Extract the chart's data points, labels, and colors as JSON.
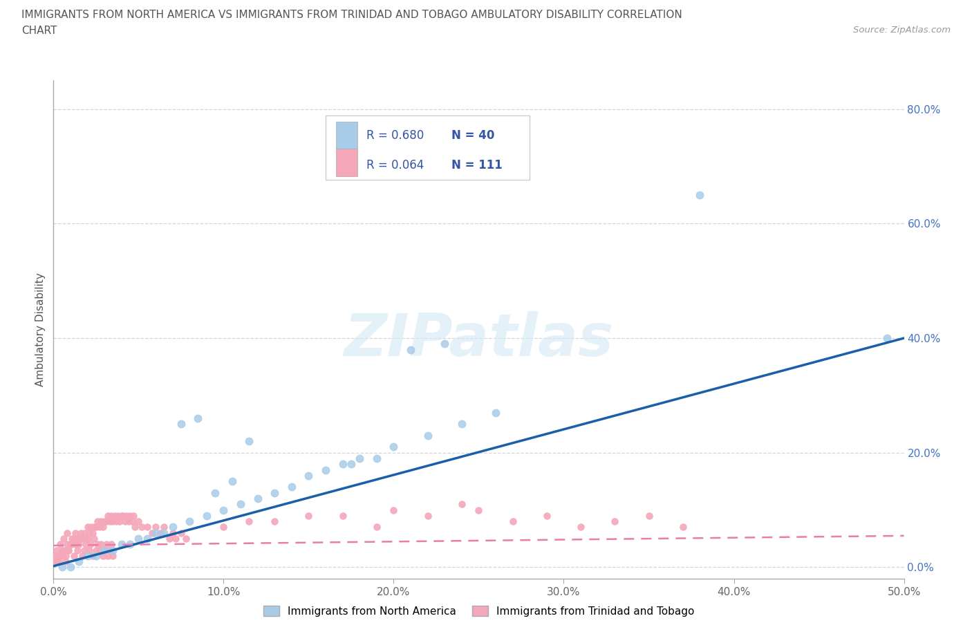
{
  "title_line1": "IMMIGRANTS FROM NORTH AMERICA VS IMMIGRANTS FROM TRINIDAD AND TOBAGO AMBULATORY DISABILITY CORRELATION",
  "title_line2": "CHART",
  "source": "Source: ZipAtlas.com",
  "ylabel": "Ambulatory Disability",
  "watermark": "ZIPatlas",
  "legend_label1": "Immigrants from North America",
  "legend_label2": "Immigrants from Trinidad and Tobago",
  "blue_color": "#a8cce8",
  "pink_color": "#f4a7b9",
  "blue_line_color": "#1a5fa8",
  "pink_line_color": "#e87da8",
  "ytick_color": "#4472c4",
  "title_color": "#555555",
  "xlim": [
    0.0,
    0.5
  ],
  "ylim": [
    -0.02,
    0.85
  ],
  "xticks": [
    0.0,
    0.1,
    0.2,
    0.3,
    0.4,
    0.5
  ],
  "yticks": [
    0.0,
    0.2,
    0.4,
    0.6,
    0.8
  ],
  "xtick_labels": [
    "0.0%",
    "10.0%",
    "20.0%",
    "30.0%",
    "40.0%",
    "50.0%"
  ],
  "ytick_labels": [
    "0.0%",
    "20.0%",
    "40.0%",
    "60.0%",
    "80.0%"
  ],
  "blue_x": [
    0.005,
    0.01,
    0.015,
    0.02,
    0.025,
    0.03,
    0.035,
    0.04,
    0.045,
    0.05,
    0.055,
    0.06,
    0.065,
    0.07,
    0.08,
    0.09,
    0.1,
    0.11,
    0.12,
    0.13,
    0.14,
    0.15,
    0.16,
    0.17,
    0.18,
    0.19,
    0.2,
    0.22,
    0.24,
    0.26,
    0.075,
    0.085,
    0.095,
    0.105,
    0.115,
    0.175,
    0.21,
    0.23,
    0.38,
    0.49
  ],
  "blue_y": [
    0.0,
    0.0,
    0.01,
    0.02,
    0.02,
    0.03,
    0.03,
    0.04,
    0.04,
    0.05,
    0.05,
    0.06,
    0.06,
    0.07,
    0.08,
    0.09,
    0.1,
    0.11,
    0.12,
    0.13,
    0.14,
    0.16,
    0.17,
    0.18,
    0.19,
    0.19,
    0.21,
    0.23,
    0.25,
    0.27,
    0.25,
    0.26,
    0.13,
    0.15,
    0.22,
    0.18,
    0.38,
    0.39,
    0.65,
    0.4
  ],
  "pink_x": [
    0.001,
    0.002,
    0.003,
    0.004,
    0.005,
    0.006,
    0.007,
    0.008,
    0.009,
    0.01,
    0.011,
    0.012,
    0.013,
    0.014,
    0.015,
    0.016,
    0.017,
    0.018,
    0.019,
    0.02,
    0.021,
    0.022,
    0.023,
    0.024,
    0.025,
    0.026,
    0.027,
    0.028,
    0.029,
    0.03,
    0.031,
    0.032,
    0.033,
    0.034,
    0.035,
    0.036,
    0.037,
    0.038,
    0.039,
    0.04,
    0.041,
    0.042,
    0.043,
    0.044,
    0.045,
    0.046,
    0.047,
    0.048,
    0.05,
    0.052,
    0.055,
    0.058,
    0.06,
    0.063,
    0.065,
    0.068,
    0.07,
    0.072,
    0.075,
    0.078,
    0.001,
    0.002,
    0.003,
    0.004,
    0.005,
    0.006,
    0.007,
    0.008,
    0.009,
    0.01,
    0.011,
    0.012,
    0.013,
    0.014,
    0.015,
    0.016,
    0.017,
    0.018,
    0.019,
    0.02,
    0.021,
    0.022,
    0.023,
    0.024,
    0.025,
    0.026,
    0.027,
    0.028,
    0.029,
    0.03,
    0.031,
    0.032,
    0.033,
    0.034,
    0.035,
    0.2,
    0.22,
    0.24,
    0.13,
    0.15,
    0.1,
    0.115,
    0.17,
    0.19,
    0.25,
    0.27,
    0.29,
    0.31,
    0.33,
    0.35,
    0.37
  ],
  "pink_y": [
    0.01,
    0.01,
    0.02,
    0.02,
    0.03,
    0.03,
    0.02,
    0.04,
    0.03,
    0.04,
    0.04,
    0.05,
    0.04,
    0.05,
    0.05,
    0.06,
    0.05,
    0.06,
    0.05,
    0.07,
    0.06,
    0.07,
    0.06,
    0.07,
    0.07,
    0.08,
    0.07,
    0.08,
    0.07,
    0.08,
    0.08,
    0.09,
    0.08,
    0.09,
    0.08,
    0.09,
    0.08,
    0.09,
    0.08,
    0.09,
    0.09,
    0.08,
    0.09,
    0.08,
    0.09,
    0.08,
    0.09,
    0.07,
    0.08,
    0.07,
    0.07,
    0.06,
    0.07,
    0.06,
    0.07,
    0.05,
    0.06,
    0.05,
    0.06,
    0.05,
    0.02,
    0.03,
    0.01,
    0.04,
    0.02,
    0.05,
    0.01,
    0.06,
    0.03,
    0.04,
    0.05,
    0.02,
    0.06,
    0.03,
    0.04,
    0.05,
    0.02,
    0.03,
    0.04,
    0.05,
    0.03,
    0.04,
    0.02,
    0.05,
    0.03,
    0.04,
    0.03,
    0.04,
    0.02,
    0.03,
    0.04,
    0.02,
    0.03,
    0.04,
    0.02,
    0.1,
    0.09,
    0.11,
    0.08,
    0.09,
    0.07,
    0.08,
    0.09,
    0.07,
    0.1,
    0.08,
    0.09,
    0.07,
    0.08,
    0.09,
    0.07
  ],
  "blue_line_x": [
    0.0,
    0.5
  ],
  "blue_line_y": [
    0.002,
    0.4
  ],
  "pink_line_x": [
    0.0,
    0.5
  ],
  "pink_line_y": [
    0.038,
    0.055
  ]
}
